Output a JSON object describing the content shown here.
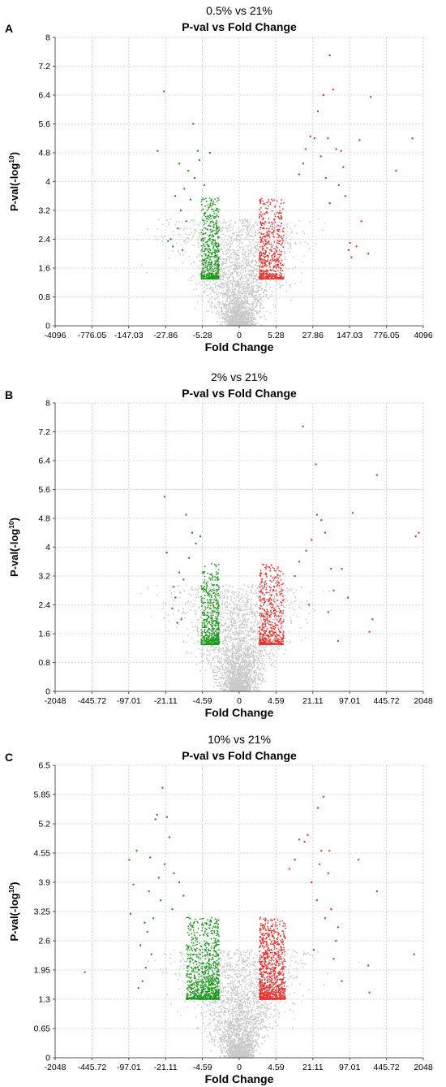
{
  "chart_data": [
    {
      "type": "scatter",
      "panel": "A",
      "comparison": "0.5% vs 21%",
      "title": "P-val vs Fold Change",
      "xlabel": "Fold Change",
      "ylabel": "P-val(-log",
      "ylabel_sup": "10",
      "ylabel_end": ")",
      "x_ticks": [
        "-4096",
        "-776.05",
        "-147.03",
        "-27.86",
        "-5.28",
        "0",
        "5.28",
        "27.86",
        "147.03",
        "776.05",
        "4096"
      ],
      "y_ticks": [
        "0",
        "0.8",
        "1.6",
        "2.4",
        "3.2",
        "4",
        "4.8",
        "5.6",
        "6.4",
        "7.2",
        "8"
      ],
      "ylim": [
        0,
        8
      ],
      "significance_threshold": 1.3,
      "grid": true,
      "colors": {
        "down": "#1a9a1a",
        "up": "#e8302c",
        "ns": "#c9c9c9"
      },
      "series": [
        {
          "name": "down",
          "points": [
            [
              -30,
              6.5
            ],
            [
              -40,
              4.85
            ],
            [
              -8,
              5.6
            ],
            [
              -6.5,
              4.85
            ],
            [
              -4.2,
              4.8
            ],
            [
              -6,
              4.6
            ],
            [
              -15,
              4.5
            ],
            [
              -10,
              4.3
            ],
            [
              -22,
              2.4
            ],
            [
              -25,
              2.35
            ],
            [
              -20,
              2.2
            ],
            [
              -12,
              3.8
            ],
            [
              -9,
              3.5
            ],
            [
              -14,
              3.2
            ],
            [
              -18,
              3.6
            ],
            [
              -11,
              2.9
            ],
            [
              -16,
              2.7
            ],
            [
              -13,
              2.1
            ],
            [
              -7.5,
              4.1
            ],
            [
              -5,
              3.9
            ]
          ]
        },
        {
          "name": "up",
          "points": [
            [
              60,
              7.5
            ],
            [
              70,
              6.55
            ],
            [
              45,
              6.4
            ],
            [
              35,
              5.95
            ],
            [
              30,
              5.2
            ],
            [
              25,
              5.25
            ],
            [
              55,
              5.2
            ],
            [
              230,
              5.15
            ],
            [
              380,
              6.35
            ],
            [
              2500,
              5.2
            ],
            [
              1200,
              4.3
            ],
            [
              250,
              2.9
            ],
            [
              340,
              2.0
            ],
            [
              80,
              4.9
            ],
            [
              100,
              4.85
            ],
            [
              110,
              4.4
            ],
            [
              120,
              3.6
            ],
            [
              150,
              2.3
            ],
            [
              140,
              2.1
            ],
            [
              160,
              1.9
            ],
            [
              20,
              4.9
            ],
            [
              18,
              4.5
            ],
            [
              15,
              4.2
            ],
            [
              40,
              4.7
            ],
            [
              50,
              4.1
            ],
            [
              90,
              3.9
            ],
            [
              60,
              3.4
            ],
            [
              200,
              2.2
            ]
          ]
        }
      ]
    },
    {
      "type": "scatter",
      "panel": "B",
      "comparison": "2% vs 21%",
      "title": "P-val vs Fold Change",
      "xlabel": "Fold Change",
      "ylabel": "P-val(-log",
      "ylabel_sup": "10",
      "ylabel_end": ")",
      "x_ticks": [
        "-2048",
        "-445.72",
        "-97.01",
        "-21.11",
        "-4.59",
        "0",
        "4.59",
        "21.11",
        "97.01",
        "445.72",
        "2048"
      ],
      "y_ticks": [
        "0",
        "0.8",
        "1.6",
        "2.4",
        "3.2",
        "4",
        "4.8",
        "5.6",
        "6.4",
        "7.2",
        "8"
      ],
      "ylim": [
        0,
        8
      ],
      "significance_threshold": 1.3,
      "grid": true,
      "colors": {
        "down": "#1a9a1a",
        "up": "#e8302c",
        "ns": "#c9c9c9"
      },
      "series": [
        {
          "name": "down",
          "points": [
            [
              -22,
              5.4
            ],
            [
              -20,
              3.85
            ],
            [
              -16,
              2.3
            ],
            [
              -9,
              4.9
            ],
            [
              -7,
              4.4
            ],
            [
              -5,
              4.3
            ],
            [
              -6,
              4.1
            ],
            [
              -12,
              3.3
            ],
            [
              -10,
              3.1
            ],
            [
              -14,
              2.6
            ],
            [
              -11,
              2.0
            ],
            [
              -8,
              3.7
            ],
            [
              -13,
              1.9
            ],
            [
              -15,
              2.9
            ]
          ]
        },
        {
          "name": "up",
          "points": [
            [
              14,
              7.35
            ],
            [
              24,
              6.3
            ],
            [
              300,
              6.0
            ],
            [
              110,
              4.95
            ],
            [
              25,
              4.9
            ],
            [
              30,
              4.75
            ],
            [
              35,
              4.4
            ],
            [
              1700,
              4.4
            ],
            [
              1500,
              4.3
            ],
            [
              250,
              2.0
            ],
            [
              220,
              1.65
            ],
            [
              90,
              2.6
            ],
            [
              70,
              3.4
            ],
            [
              60,
              1.4
            ],
            [
              45,
              3.4
            ],
            [
              50,
              2.8
            ],
            [
              20,
              4.2
            ],
            [
              16,
              3.9
            ],
            [
              12,
              3.6
            ],
            [
              10,
              3.2
            ],
            [
              18,
              2.4
            ],
            [
              40,
              2.2
            ]
          ]
        }
      ]
    },
    {
      "type": "scatter",
      "panel": "C",
      "comparison": "10% vs 21%",
      "title": "P-val vs Fold Change",
      "xlabel": "Fold Change",
      "ylabel": "P-val(-log",
      "ylabel_sup": "10",
      "ylabel_end": ")",
      "x_ticks": [
        "-2048",
        "-445.72",
        "-97.01",
        "-21.11",
        "-4.59",
        "0",
        "4.59",
        "21.11",
        "97.01",
        "445.72",
        "2048"
      ],
      "y_ticks": [
        "0",
        "0.65",
        "1.3",
        "1.95",
        "2.6",
        "3.25",
        "3.9",
        "4.55",
        "5.2",
        "5.85",
        "6.5"
      ],
      "ylim": [
        0,
        6.5
      ],
      "significance_threshold": 1.3,
      "grid": true,
      "colors": {
        "down": "#1a9a1a",
        "up": "#e8302c",
        "ns": "#c9c9c9"
      },
      "series": [
        {
          "name": "down",
          "points": [
            [
              -600,
              1.9
            ],
            [
              -95,
              4.4
            ],
            [
              -80,
              3.85
            ],
            [
              -70,
              4.6
            ],
            [
              -55,
              1.7
            ],
            [
              -48,
              2.0
            ],
            [
              -40,
              4.45
            ],
            [
              -32,
              5.3
            ],
            [
              -30,
              5.4
            ],
            [
              -24,
              6.0
            ],
            [
              -20,
              5.35
            ],
            [
              -18,
              4.9
            ],
            [
              -26,
              3.5
            ],
            [
              -35,
              3.1
            ],
            [
              -45,
              2.8
            ],
            [
              -60,
              2.5
            ],
            [
              -50,
              3.0
            ],
            [
              -38,
              2.3
            ],
            [
              -28,
              4.0
            ],
            [
              -22,
              4.3
            ],
            [
              -15,
              4.1
            ],
            [
              -12,
              3.9
            ],
            [
              -10,
              3.6
            ],
            [
              -16,
              3.3
            ],
            [
              -65,
              1.55
            ],
            [
              -90,
              3.2
            ],
            [
              -42,
              3.7
            ]
          ]
        },
        {
          "name": "up",
          "points": [
            [
              33,
              5.8
            ],
            [
              26,
              5.55
            ],
            [
              17,
              4.95
            ],
            [
              15,
              4.8
            ],
            [
              12,
              4.85
            ],
            [
              30,
              4.6
            ],
            [
              42,
              4.6
            ],
            [
              140,
              4.4
            ],
            [
              40,
              4.1
            ],
            [
              45,
              3.3
            ],
            [
              55,
              2.6
            ],
            [
              60,
              2.9
            ],
            [
              300,
              3.7
            ],
            [
              210,
              2.05
            ],
            [
              220,
              1.45
            ],
            [
              1400,
              2.3
            ],
            [
              10,
              4.4
            ],
            [
              8,
              4.2
            ],
            [
              20,
              3.9
            ],
            [
              25,
              3.5
            ],
            [
              35,
              3.1
            ],
            [
              50,
              2.2
            ],
            [
              70,
              1.7
            ],
            [
              22,
              2.4
            ],
            [
              28,
              4.3
            ]
          ]
        }
      ]
    }
  ]
}
